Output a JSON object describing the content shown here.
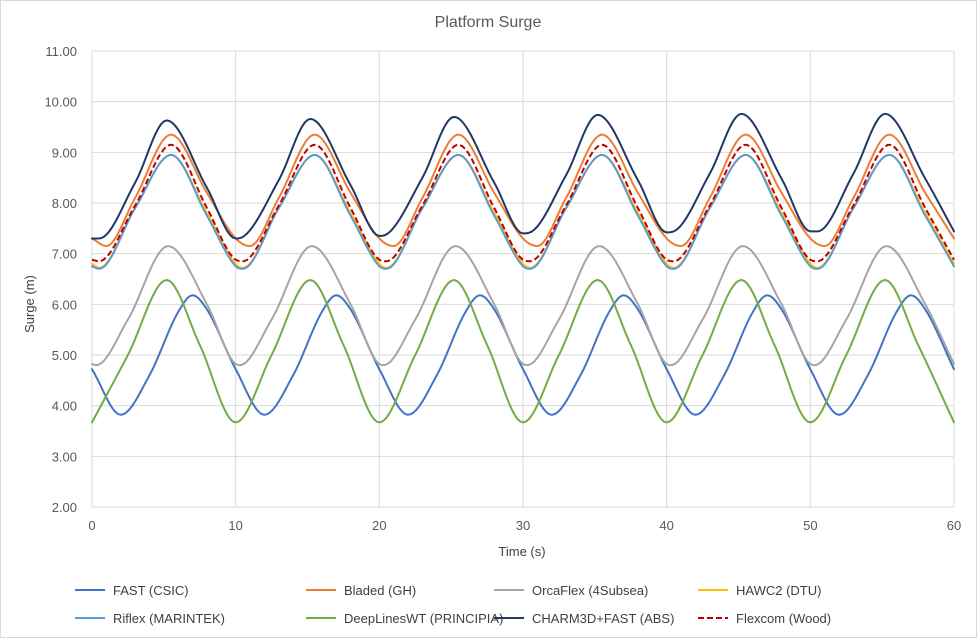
{
  "chart_data": {
    "type": "line",
    "title": "Platform Surge",
    "xlabel": "Time (s)",
    "ylabel": "Surge (m)",
    "xlim": [
      0,
      60
    ],
    "ylim": [
      2,
      11
    ],
    "xticks": [
      "0",
      "10",
      "20",
      "30",
      "40",
      "50",
      "60"
    ],
    "yticks": [
      "2.00",
      "3.00",
      "4.00",
      "5.00",
      "6.00",
      "7.00",
      "8.00",
      "9.00",
      "10.00",
      "11.00"
    ],
    "grid": "vertical and horizontal",
    "legend_position": "bottom",
    "period_s": 10,
    "sample_step_s": 0.2,
    "series": [
      {
        "name": "FAST (CSIC)",
        "color": "#4472C4",
        "dash": "solid",
        "x": [
          0,
          2,
          4,
          6,
          7,
          8,
          10,
          12,
          14,
          16,
          17,
          18,
          20,
          22,
          24,
          26,
          27,
          28,
          30,
          32,
          34,
          36,
          37,
          38,
          40,
          42,
          44,
          46,
          47,
          48,
          50,
          52,
          54,
          56,
          57,
          58,
          60
        ],
        "y": [
          4.72,
          3.82,
          4.6,
          5.85,
          6.18,
          5.9,
          4.72,
          3.82,
          4.6,
          5.85,
          6.18,
          5.9,
          4.72,
          3.82,
          4.6,
          5.85,
          6.18,
          5.9,
          4.72,
          3.82,
          4.6,
          5.85,
          6.18,
          5.9,
          4.72,
          3.82,
          4.6,
          5.85,
          6.18,
          5.9,
          4.72,
          3.82,
          4.6,
          5.85,
          6.18,
          5.9,
          4.72
        ]
      },
      {
        "name": "Bladed (GH)",
        "color": "#ED7D31",
        "dash": "solid",
        "x": [
          0,
          1,
          3,
          5.5,
          8,
          10,
          11,
          13,
          15.5,
          18,
          20,
          21,
          23,
          25.5,
          28,
          30,
          31,
          33,
          35.5,
          38,
          40,
          41,
          43,
          45.5,
          48,
          50,
          51,
          53,
          55.5,
          58,
          60
        ],
        "y": [
          7.3,
          7.15,
          8.1,
          9.35,
          8.2,
          7.3,
          7.15,
          8.1,
          9.35,
          8.2,
          7.3,
          7.15,
          8.1,
          9.35,
          8.2,
          7.3,
          7.15,
          8.1,
          9.35,
          8.2,
          7.3,
          7.15,
          8.1,
          9.35,
          8.2,
          7.3,
          7.15,
          8.1,
          9.35,
          8.2,
          7.3
        ]
      },
      {
        "name": "OrcaFlex (4Subsea)",
        "color": "#A5A5A5",
        "dash": "solid",
        "x": [
          0,
          0.3,
          2.5,
          5.3,
          8,
          10,
          10.3,
          12.5,
          15.3,
          18,
          20,
          20.3,
          22.5,
          25.3,
          28,
          30,
          30.3,
          32.5,
          35.3,
          38,
          40,
          40.3,
          42.5,
          45.3,
          48,
          50,
          50.3,
          52.5,
          55.3,
          58,
          60
        ],
        "y": [
          4.82,
          4.8,
          5.7,
          7.15,
          6.0,
          4.82,
          4.8,
          5.7,
          7.15,
          6.0,
          4.82,
          4.8,
          5.7,
          7.15,
          6.0,
          4.82,
          4.8,
          5.7,
          7.15,
          6.0,
          4.82,
          4.8,
          5.7,
          7.15,
          6.0,
          4.82,
          4.8,
          5.7,
          7.15,
          6.0,
          4.82
        ]
      },
      {
        "name": "HAWC2 (DTU)",
        "color": "#FFC000",
        "dash": "solid",
        "x": [
          0,
          0.5,
          3,
          5.5,
          8,
          10,
          10.5,
          13,
          15.5,
          18,
          20,
          20.5,
          23,
          25.5,
          28,
          30,
          30.5,
          33,
          35.5,
          38,
          40,
          40.5,
          43,
          45.5,
          48,
          50,
          50.5,
          53,
          55.5,
          58,
          60
        ],
        "y": [
          6.8,
          6.72,
          7.9,
          8.95,
          7.8,
          6.8,
          6.72,
          7.9,
          8.95,
          7.8,
          6.8,
          6.72,
          7.9,
          8.95,
          7.8,
          6.8,
          6.72,
          7.9,
          8.95,
          7.8,
          6.8,
          6.72,
          7.9,
          8.95,
          7.8,
          6.8,
          6.72,
          7.9,
          8.95,
          7.8,
          6.8
        ]
      },
      {
        "name": "Riflex (MARINTEK)",
        "color": "#5B9BD5",
        "dash": "solid",
        "x": [
          0,
          0.5,
          3,
          5.5,
          8,
          10,
          10.5,
          13,
          15.5,
          18,
          20,
          20.5,
          23,
          25.5,
          28,
          30,
          30.5,
          33,
          35.5,
          38,
          40,
          40.5,
          43,
          45.5,
          48,
          50,
          50.5,
          53,
          55.5,
          58,
          60
        ],
        "y": [
          6.75,
          6.7,
          7.9,
          8.95,
          7.75,
          6.75,
          6.7,
          7.9,
          8.95,
          7.75,
          6.75,
          6.7,
          7.9,
          8.95,
          7.75,
          6.75,
          6.7,
          7.9,
          8.95,
          7.75,
          6.75,
          6.7,
          7.9,
          8.95,
          7.75,
          6.75,
          6.7,
          7.9,
          8.95,
          7.75,
          6.75
        ]
      },
      {
        "name": "DeepLinesWT (PRINCIPIA)",
        "color": "#70AD47",
        "dash": "solid",
        "x": [
          0,
          2.5,
          5.2,
          7.5,
          10,
          12.5,
          15.2,
          17.5,
          20,
          22.5,
          25.2,
          27.5,
          30,
          32.5,
          35.2,
          37.5,
          40,
          42.5,
          45.2,
          47.5,
          50,
          52.5,
          55.2,
          57.5,
          60
        ],
        "y": [
          3.67,
          5.0,
          6.48,
          5.2,
          3.67,
          5.0,
          6.48,
          5.2,
          3.67,
          5.0,
          6.48,
          5.2,
          3.67,
          5.0,
          6.48,
          5.2,
          3.67,
          5.0,
          6.48,
          5.2,
          3.67,
          5.0,
          6.48,
          5.2,
          3.67
        ]
      },
      {
        "name": "CHARM3D+FAST (ABS)",
        "color": "#203864",
        "dash": "solid",
        "x": [
          0,
          0.5,
          3,
          5.2,
          8,
          10,
          10.5,
          13,
          15.2,
          18,
          20,
          20.5,
          23,
          25.2,
          28,
          30,
          30.5,
          33,
          35.2,
          38,
          40,
          40.5,
          43,
          45.2,
          48,
          50,
          50.5,
          53,
          55.2,
          58,
          60
        ],
        "y": [
          7.3,
          7.3,
          8.4,
          9.63,
          8.3,
          7.3,
          7.33,
          8.45,
          9.66,
          8.35,
          7.35,
          7.38,
          8.5,
          9.7,
          8.4,
          7.4,
          7.42,
          8.55,
          9.74,
          8.45,
          7.42,
          7.44,
          8.58,
          9.76,
          8.48,
          7.44,
          7.44,
          8.58,
          9.76,
          8.48,
          7.44
        ]
      },
      {
        "name": "Flexcom (Wood)",
        "color": "#C00000",
        "dash": "dashed",
        "x": [
          0,
          0.5,
          3,
          5.5,
          8,
          10,
          10.5,
          13,
          15.5,
          18,
          20,
          20.5,
          23,
          25.5,
          28,
          30,
          30.5,
          33,
          35.5,
          38,
          40,
          40.5,
          43,
          45.5,
          48,
          50,
          50.5,
          53,
          55.5,
          58,
          60
        ],
        "y": [
          6.88,
          6.85,
          7.95,
          9.15,
          7.9,
          6.88,
          6.85,
          7.95,
          9.15,
          7.9,
          6.88,
          6.85,
          7.95,
          9.15,
          7.9,
          6.88,
          6.85,
          7.95,
          9.15,
          7.9,
          6.88,
          6.85,
          7.95,
          9.15,
          7.9,
          6.88,
          6.85,
          7.95,
          9.15,
          7.9,
          6.88
        ]
      }
    ]
  }
}
